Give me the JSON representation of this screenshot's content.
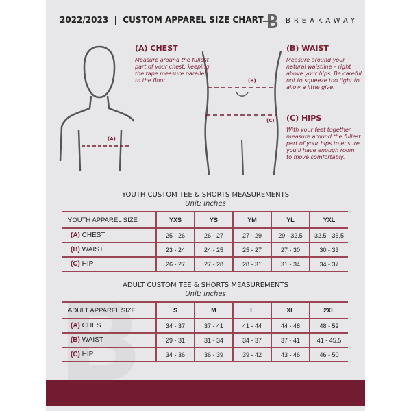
{
  "header": {
    "title": "2022/2023  |  CUSTOM APPAREL SIZE CHART",
    "brand": "BREAKAWAY"
  },
  "chest": {
    "heading": "(A) CHEST",
    "text": "Measure around the fullest part of your chest, keeping the tape measure parallel to the floor",
    "marker": "(A)"
  },
  "waist": {
    "heading": "(B) WAIST",
    "text": "Measure around your natural waistline – right above your hips. Be careful not to squeeze too tight to allow a little give.",
    "marker": "(B)"
  },
  "hips": {
    "heading": "(C) HIPS",
    "text": "With your feet together, measure around the fullest part of your hips to ensure you'll have enough room to move comfortably.",
    "marker": "(C)"
  },
  "youth": {
    "title": "YOUTH CUSTOM TEE & SHORTS MEASUREMENTS",
    "unit": "Unit: Inches",
    "size_label": "YOUTH APPAREL SIZE",
    "sizes": [
      "YXS",
      "YS",
      "YM",
      "YL",
      "YXL"
    ],
    "rows": [
      {
        "key": "(A)",
        "label": "CHEST",
        "values": [
          "25 - 26",
          "26 - 27",
          "27 - 29",
          "29 - 32.5",
          "32.5 - 35.5"
        ]
      },
      {
        "key": "(B)",
        "label": "WAIST",
        "values": [
          "23 - 24",
          "24 - 25",
          "25 - 27",
          "27 - 30",
          "30 - 33"
        ]
      },
      {
        "key": "(C)",
        "label": "HIP",
        "values": [
          "26 - 27",
          "27 - 28",
          "28 - 31",
          "31 - 34",
          "34 - 37"
        ]
      }
    ]
  },
  "adult": {
    "title": "ADULT CUSTOM TEE & SHORTS MEASUREMENTS",
    "unit": "Unit: Inches",
    "size_label": "ADULT APPAREL SIZE",
    "sizes": [
      "S",
      "M",
      "L",
      "XL",
      "2XL"
    ],
    "rows": [
      {
        "key": "(A)",
        "label": "CHEST",
        "values": [
          "34 - 37",
          "37 - 41",
          "41 - 44",
          "44 - 48",
          "48 - 52"
        ]
      },
      {
        "key": "(B)",
        "label": "WAIST",
        "values": [
          "29 - 31",
          "31 - 34",
          "34 - 37",
          "37 - 41",
          "41 - 45.5"
        ]
      },
      {
        "key": "(C)",
        "label": "HIP",
        "values": [
          "34 - 36",
          "36 - 39",
          "39 - 42",
          "43 - 46",
          "46 - 50"
        ]
      }
    ]
  },
  "colors": {
    "accent": "#721b31",
    "panel": "#e7e7e9"
  }
}
